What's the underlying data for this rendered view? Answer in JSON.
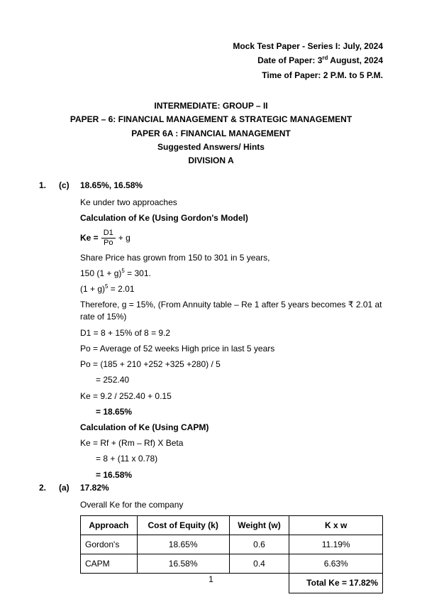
{
  "header": {
    "line1": "Mock Test Paper - Series I: July, 2024",
    "line2_pre": "Date of Paper: 3",
    "line2_sup": "rd",
    "line2_post": " August, 2024",
    "line3": "Time of Paper: 2 P.M. to 5 P.M."
  },
  "title": {
    "l1": "INTERMEDIATE: GROUP – II",
    "l2": "PAPER – 6: FINANCIAL MANAGEMENT & STRATEGIC MANAGEMENT",
    "l3": "PAPER 6A : FINANCIAL MANAGEMENT",
    "l4": "Suggested Answers/ Hints",
    "l5": "DIVISION A"
  },
  "q1": {
    "num": "1.",
    "opt": "(c)",
    "ans": "18.65%, 16.58%",
    "l1": "Ke under two approaches",
    "l2": "Calculation of Ke (Using Gordon's Model)",
    "formula_ke": "Ke =",
    "formula_num": "D1",
    "formula_den": "Po",
    "formula_plus_g": "+ g",
    "l3": "Share Price has grown from 150 to 301 in 5 years,",
    "l4_a": "150 (1 + g)",
    "l4_sup": "5",
    "l4_b": " = 301.",
    "l5_a": "(1 + g)",
    "l5_sup": "5",
    "l5_b": " = 2.01",
    "l6": "Therefore, g = 15%, (From Annuity table – Re 1 after 5 years becomes ₹ 2.01 at rate of 15%)",
    "l7": "D1 = 8 + 15% of 8 = 9.2",
    "l8": "Po = Average of 52 weeks High price in last 5 years",
    "l9": "Po = (185 + 210 +252 +325 +280) / 5",
    "l10": "= 252.40",
    "l11": "Ke = 9.2 / 252.40 + 0.15",
    "l12": "= 18.65%",
    "l13": "Calculation of Ke (Using CAPM)",
    "l14": "Ke = Rf + (Rm – Rf) X Beta",
    "l15": "= 8 + (11 x 0.78)",
    "l16": "= 16.58%"
  },
  "q2": {
    "num": "2.",
    "opt": "(a)",
    "ans": "17.82%",
    "l1": "Overall Ke for the company",
    "table": {
      "h1": "Approach",
      "h2": "Cost of Equity (k)",
      "h3": "Weight (w)",
      "h4": "K x w",
      "r1c1": "Gordon's",
      "r1c2": "18.65%",
      "r1c3": "0.6",
      "r1c4": "11.19%",
      "r2c1": "CAPM",
      "r2c2": "16.58%",
      "r2c3": "0.4",
      "r2c4": "6.63%",
      "total": "Total Ke = 17.82%"
    }
  },
  "page_number": "1"
}
